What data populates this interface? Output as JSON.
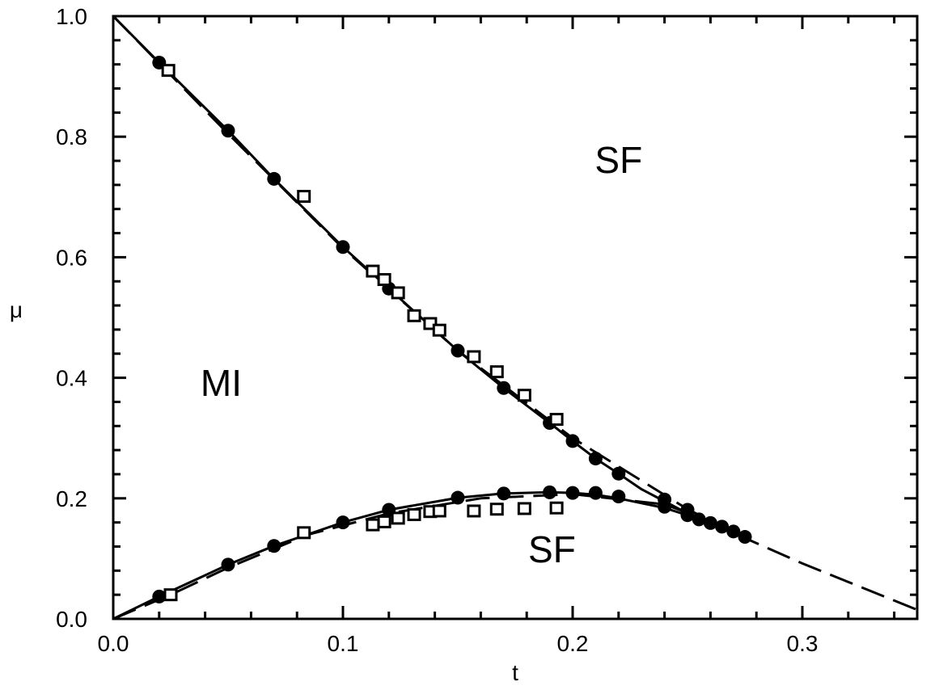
{
  "chart_data": {
    "type": "scatter",
    "xlabel": "t",
    "ylabel": "μ",
    "xlim": [
      0.0,
      0.35
    ],
    "ylim": [
      0.0,
      1.0
    ],
    "x_ticks": [
      {
        "value": 0.0,
        "label": "0.0"
      },
      {
        "value": 0.1,
        "label": "0.1"
      },
      {
        "value": 0.2,
        "label": "0.2"
      },
      {
        "value": 0.3,
        "label": "0.3"
      }
    ],
    "y_ticks": [
      {
        "value": 0.0,
        "label": "0.0"
      },
      {
        "value": 0.2,
        "label": "0.2"
      },
      {
        "value": 0.4,
        "label": "0.4"
      },
      {
        "value": 0.6,
        "label": "0.6"
      },
      {
        "value": 0.8,
        "label": "0.8"
      },
      {
        "value": 1.0,
        "label": "1.0"
      }
    ],
    "x_minor_step": 0.02,
    "y_minor_step": 0.04,
    "grid": false,
    "annotations": [
      {
        "text": "SF",
        "x": 0.22,
        "y": 0.74
      },
      {
        "text": "MI",
        "x": 0.047,
        "y": 0.37
      },
      {
        "text": "SF",
        "x": 0.191,
        "y": 0.094
      }
    ],
    "series": [
      {
        "style": "solid-line",
        "color": "#000000",
        "points": [
          [
            0.0,
            1.0
          ],
          [
            0.02,
            0.923
          ],
          [
            0.05,
            0.81
          ],
          [
            0.07,
            0.73
          ],
          [
            0.1,
            0.617
          ],
          [
            0.12,
            0.548
          ],
          [
            0.15,
            0.445
          ],
          [
            0.17,
            0.383
          ],
          [
            0.19,
            0.325
          ],
          [
            0.2,
            0.295
          ],
          [
            0.21,
            0.266
          ],
          [
            0.22,
            0.241
          ],
          [
            0.23,
            0.215
          ],
          [
            0.24,
            0.195
          ],
          [
            0.25,
            0.175
          ],
          [
            0.26,
            0.158
          ],
          [
            0.27,
            0.145
          ],
          [
            0.275,
            0.136
          ]
        ]
      },
      {
        "style": "solid-line",
        "color": "#000000",
        "points": [
          [
            0.0,
            0.0
          ],
          [
            0.02,
            0.037
          ],
          [
            0.05,
            0.09
          ],
          [
            0.07,
            0.121
          ],
          [
            0.1,
            0.16
          ],
          [
            0.12,
            0.181
          ],
          [
            0.15,
            0.201
          ],
          [
            0.17,
            0.208
          ],
          [
            0.19,
            0.21
          ],
          [
            0.2,
            0.209
          ],
          [
            0.21,
            0.206
          ],
          [
            0.22,
            0.2
          ],
          [
            0.23,
            0.192
          ],
          [
            0.24,
            0.184
          ],
          [
            0.25,
            0.172
          ],
          [
            0.26,
            0.159
          ],
          [
            0.27,
            0.147
          ],
          [
            0.275,
            0.136
          ]
        ]
      },
      {
        "style": "dashed-line",
        "color": "#000000",
        "points": [
          [
            0.0,
            1.0
          ],
          [
            0.05,
            0.805
          ],
          [
            0.1,
            0.615
          ],
          [
            0.15,
            0.445
          ],
          [
            0.2,
            0.3
          ],
          [
            0.25,
            0.182
          ],
          [
            0.275,
            0.134
          ],
          [
            0.3,
            0.092
          ],
          [
            0.35,
            0.015
          ]
        ]
      },
      {
        "style": "dashed-line",
        "color": "#000000",
        "points": [
          [
            0.0,
            0.0
          ],
          [
            0.025,
            0.04
          ],
          [
            0.05,
            0.085
          ],
          [
            0.085,
            0.14
          ],
          [
            0.12,
            0.175
          ],
          [
            0.16,
            0.2
          ],
          [
            0.2,
            0.207
          ],
          [
            0.24,
            0.19
          ],
          [
            0.265,
            0.155
          ],
          [
            0.275,
            0.136
          ]
        ]
      },
      {
        "marker": "filled-circle",
        "color": "#000000",
        "points": [
          [
            0.02,
            0.923
          ],
          [
            0.05,
            0.81
          ],
          [
            0.07,
            0.73
          ],
          [
            0.1,
            0.617
          ],
          [
            0.12,
            0.548
          ],
          [
            0.15,
            0.445
          ],
          [
            0.17,
            0.383
          ],
          [
            0.19,
            0.325
          ],
          [
            0.2,
            0.295
          ],
          [
            0.21,
            0.266
          ],
          [
            0.22,
            0.241
          ],
          [
            0.02,
            0.037
          ],
          [
            0.05,
            0.09
          ],
          [
            0.07,
            0.121
          ],
          [
            0.1,
            0.16
          ],
          [
            0.12,
            0.181
          ],
          [
            0.15,
            0.201
          ],
          [
            0.17,
            0.208
          ],
          [
            0.19,
            0.21
          ],
          [
            0.2,
            0.209
          ],
          [
            0.21,
            0.209
          ],
          [
            0.22,
            0.203
          ],
          [
            0.24,
            0.198
          ],
          [
            0.24,
            0.186
          ],
          [
            0.25,
            0.181
          ],
          [
            0.25,
            0.172
          ],
          [
            0.255,
            0.165
          ],
          [
            0.26,
            0.159
          ],
          [
            0.265,
            0.153
          ],
          [
            0.27,
            0.145
          ],
          [
            0.275,
            0.136
          ]
        ]
      },
      {
        "marker": "open-square",
        "color": "#000000",
        "points": [
          [
            0.024,
            0.91
          ],
          [
            0.083,
            0.701
          ],
          [
            0.113,
            0.577
          ],
          [
            0.118,
            0.563
          ],
          [
            0.124,
            0.541
          ],
          [
            0.131,
            0.503
          ],
          [
            0.138,
            0.49
          ],
          [
            0.142,
            0.479
          ],
          [
            0.157,
            0.435
          ],
          [
            0.167,
            0.41
          ],
          [
            0.179,
            0.371
          ],
          [
            0.193,
            0.331
          ],
          [
            0.025,
            0.04
          ],
          [
            0.083,
            0.143
          ],
          [
            0.113,
            0.156
          ],
          [
            0.118,
            0.161
          ],
          [
            0.124,
            0.167
          ],
          [
            0.131,
            0.173
          ],
          [
            0.138,
            0.178
          ],
          [
            0.142,
            0.179
          ],
          [
            0.157,
            0.179
          ],
          [
            0.167,
            0.182
          ],
          [
            0.179,
            0.183
          ],
          [
            0.193,
            0.184
          ]
        ]
      }
    ]
  }
}
